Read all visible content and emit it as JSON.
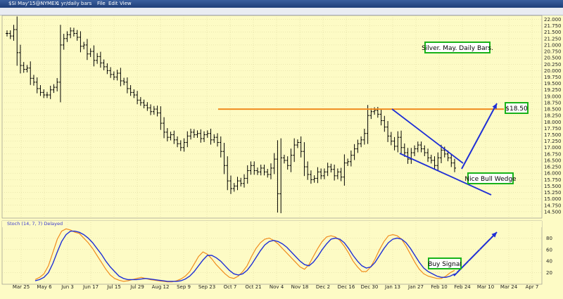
{
  "window": {
    "symbol_label": "$SI May'15@NYMEX",
    "period_label": "1 yr/daily bars",
    "menu": [
      "File",
      "Edit",
      "View"
    ]
  },
  "colors": {
    "background": "#fdfbc5",
    "bars": "#000000",
    "resistance": "#f08c1e",
    "annotation": "#1f2fd6",
    "label_border": "#19b319",
    "stoch_k": "#f08c1e",
    "stoch_d": "#1f2fd6"
  },
  "chart_data": [
    {
      "type": "ohlc",
      "y_axis_side": "right",
      "ylim": [
        14.25,
        22.15
      ],
      "yticks": [
        "22.000",
        "21.750",
        "21.500",
        "21.250",
        "21.000",
        "20.750",
        "20.500",
        "20.250",
        "20.000",
        "19.750",
        "19.500",
        "19.250",
        "19.000",
        "18.750",
        "18.500",
        "18.250",
        "18.000",
        "17.750",
        "17.500",
        "17.250",
        "17.000",
        "16.750",
        "16.500",
        "16.250",
        "16.000",
        "15.750",
        "15.500",
        "15.250",
        "15.000",
        "14.750",
        "14.500"
      ],
      "x_labels": [
        "Mar 25",
        "May 6",
        "Jun 3",
        "Jun 17",
        "Jul 15",
        "Jul 29",
        "Aug 12",
        "Sep 9",
        "Sep 23",
        "Oct 7",
        "Oct 21",
        "Nov 4",
        "Nov 18",
        "Dec 2",
        "Dec 16",
        "Dec 30",
        "Jan 13",
        "Jan 27",
        "Feb 10",
        "Feb 24",
        "Mar 10",
        "Mar 24",
        "Apr 7"
      ],
      "closes": [
        21.45,
        21.35,
        21.6,
        20.7,
        20.2,
        20.05,
        20.1,
        19.7,
        19.55,
        19.3,
        19.15,
        19.05,
        19.05,
        19.25,
        19.35,
        19.55,
        21.0,
        21.25,
        21.4,
        21.55,
        21.45,
        21.3,
        20.95,
        21.0,
        20.65,
        20.75,
        20.4,
        20.55,
        20.3,
        20.15,
        20.0,
        19.85,
        19.75,
        19.9,
        19.6,
        19.55,
        19.3,
        19.15,
        19.05,
        18.85,
        18.75,
        18.65,
        18.55,
        18.4,
        18.5,
        18.35,
        17.95,
        17.6,
        17.4,
        17.5,
        17.3,
        17.15,
        17.0,
        17.2,
        17.45,
        17.6,
        17.5,
        17.55,
        17.35,
        17.5,
        17.55,
        17.3,
        17.4,
        17.2,
        16.85,
        16.3,
        15.7,
        15.4,
        15.5,
        15.7,
        15.6,
        15.8,
        16.1,
        16.3,
        16.1,
        16.05,
        16.2,
        16.05,
        15.95,
        16.2,
        16.55,
        15.2,
        16.6,
        16.5,
        16.3,
        16.7,
        17.1,
        17.2,
        16.85,
        16.25,
        15.95,
        15.75,
        15.8,
        16.05,
        15.9,
        16.05,
        16.25,
        16.15,
        15.9,
        16.05,
        15.85,
        16.4,
        16.45,
        16.7,
        16.95,
        17.15,
        17.3,
        17.55,
        18.25,
        18.4,
        18.45,
        18.3,
        18.05,
        17.8,
        17.45,
        17.25,
        17.05,
        17.4,
        17.0,
        16.8,
        16.55,
        16.8,
        16.95,
        17.1,
        16.95,
        16.8,
        16.6,
        16.5,
        16.3,
        16.6,
        16.9,
        16.75,
        16.6,
        16.4,
        16.2
      ],
      "horizontal_line": 18.5,
      "label": "Silver. May. Daily Bars.",
      "annotations": [
        "$18.50",
        "Nice Bull Wedge"
      ]
    },
    {
      "type": "line",
      "title": "Stoch (14, 7, 7) Delayed",
      "yticks": [
        "80",
        "60",
        "40",
        "20"
      ],
      "ylim": [
        0,
        100
      ],
      "series": [
        {
          "color": "#f08c1e",
          "values": [
            8,
            12,
            18,
            32,
            55,
            78,
            92,
            96,
            94,
            90,
            88,
            80,
            72,
            62,
            50,
            38,
            26,
            16,
            10,
            7,
            5,
            6,
            8,
            10,
            12,
            10,
            8,
            7,
            6,
            5,
            4,
            4,
            6,
            9,
            14,
            22,
            35,
            48,
            56,
            52,
            44,
            34,
            26,
            18,
            12,
            10,
            14,
            22,
            32,
            48,
            62,
            72,
            78,
            80,
            76,
            70,
            62,
            54,
            46,
            38,
            30,
            26,
            34,
            48,
            62,
            74,
            82,
            84,
            82,
            76,
            66,
            54,
            40,
            30,
            22,
            22,
            30,
            44,
            60,
            74,
            84,
            86,
            84,
            78,
            66,
            52,
            38,
            26,
            18,
            14,
            12,
            10,
            10,
            14,
            20,
            24
          ]
        },
        {
          "color": "#1f2fd6",
          "values": [
            6,
            8,
            12,
            20,
            36,
            56,
            74,
            86,
            92,
            92,
            90,
            86,
            80,
            72,
            62,
            52,
            40,
            30,
            22,
            14,
            10,
            8,
            8,
            8,
            9,
            10,
            9,
            8,
            7,
            6,
            5,
            5,
            5,
            6,
            9,
            14,
            22,
            32,
            42,
            50,
            50,
            46,
            40,
            32,
            24,
            18,
            16,
            18,
            24,
            34,
            46,
            58,
            68,
            74,
            76,
            74,
            70,
            64,
            56,
            48,
            40,
            34,
            32,
            38,
            48,
            60,
            70,
            78,
            80,
            78,
            72,
            62,
            50,
            40,
            32,
            28,
            30,
            38,
            50,
            62,
            72,
            78,
            80,
            78,
            72,
            62,
            50,
            38,
            28,
            22,
            18,
            14,
            12,
            12,
            14,
            18
          ]
        }
      ],
      "annotation": "Buy Signal"
    }
  ]
}
